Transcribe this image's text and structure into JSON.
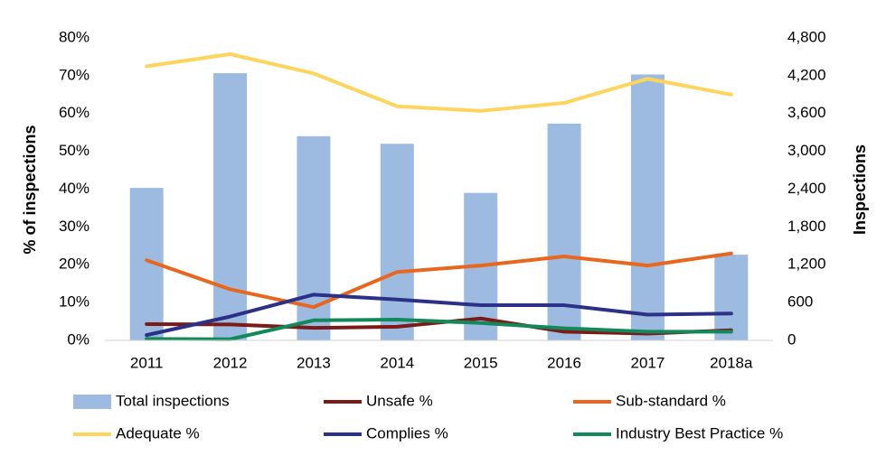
{
  "chart_data": {
    "type": "bar+line",
    "categories": [
      "2011",
      "2012",
      "2013",
      "2014",
      "2015",
      "2016",
      "2017",
      "2018a"
    ],
    "ylabel": "% of inspections",
    "y2label": "Inspections",
    "ylim": [
      0,
      80
    ],
    "y2lim": [
      0,
      4800
    ],
    "yticks": [
      "0%",
      "10%",
      "20%",
      "30%",
      "40%",
      "50%",
      "60%",
      "70%",
      "80%"
    ],
    "y2ticks": [
      "0",
      "600",
      "1,200",
      "1,800",
      "2,400",
      "3,000",
      "3,600",
      "4,200",
      "4,800"
    ],
    "grid": false,
    "legend_position": "bottom",
    "bar_series": {
      "name": "Total inspections",
      "color": "#9dbbe0",
      "axis": "right",
      "values": [
        2420,
        4240,
        3240,
        3120,
        2340,
        3440,
        4220,
        1360
      ]
    },
    "line_series": [
      {
        "name": "Unsafe %",
        "color": "#7b1a17",
        "values": [
          4.3,
          4.2,
          3.3,
          3.6,
          5.8,
          2.3,
          1.8,
          2.7
        ]
      },
      {
        "name": "Sub-standard %",
        "color": "#e8661e",
        "values": [
          21.2,
          13.5,
          8.8,
          18.1,
          19.8,
          22.2,
          19.8,
          23.0
        ]
      },
      {
        "name": "Adequate %",
        "color": "#fdd55c",
        "values": [
          72.5,
          75.7,
          70.6,
          61.9,
          60.7,
          62.8,
          69.2,
          65.0
        ]
      },
      {
        "name": "Complies %",
        "color": "#2b3186",
        "values": [
          1.4,
          6.3,
          12.1,
          10.8,
          9.3,
          9.3,
          6.8,
          7.1
        ]
      },
      {
        "name": "Industry Best Practice %",
        "color": "#12895a",
        "values": [
          0.4,
          0.3,
          5.3,
          5.5,
          4.6,
          3.2,
          2.3,
          2.3
        ]
      }
    ],
    "legend": [
      "Total inspections",
      "Unsafe %",
      "Sub-standard %",
      "Adequate %",
      "Complies %",
      "Industry Best Practice %"
    ]
  }
}
